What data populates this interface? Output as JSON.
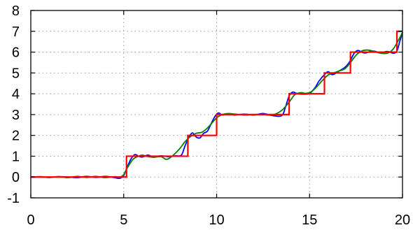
{
  "chart_data": {
    "type": "line",
    "title": "",
    "xlabel": "",
    "ylabel": "",
    "xlim": [
      0,
      20
    ],
    "ylim": [
      -1,
      8
    ],
    "xticks": [
      0,
      5,
      10,
      15,
      20
    ],
    "yticks": [
      -1,
      0,
      1,
      2,
      3,
      4,
      5,
      6,
      7,
      8
    ],
    "grid": true,
    "legend": "none",
    "series": [
      {
        "style": "step",
        "color": "#ff0000",
        "x": [
          0,
          5.15,
          5.15,
          8.45,
          8.45,
          10.0,
          10.0,
          13.9,
          13.9,
          15.8,
          15.8,
          17.2,
          17.2,
          19.7,
          19.7,
          20
        ],
        "y": [
          0,
          0,
          1,
          1,
          2,
          2,
          3,
          3,
          4,
          4,
          5,
          5,
          6,
          6,
          7,
          7
        ]
      },
      {
        "style": "smooth",
        "color": "#0000ff",
        "x": [
          0,
          0.5,
          1,
          1.5,
          2,
          2.5,
          3,
          3.5,
          4,
          4.5,
          4.8,
          5.0,
          5.2,
          5.4,
          5.6,
          5.8,
          6.0,
          6.3,
          6.6,
          7.0,
          7.4,
          7.8,
          8.1,
          8.3,
          8.5,
          8.7,
          8.9,
          9.1,
          9.3,
          9.5,
          9.7,
          9.9,
          10.1,
          10.3,
          10.6,
          11.0,
          11.5,
          12.0,
          12.5,
          13.0,
          13.5,
          13.7,
          13.9,
          14.1,
          14.3,
          14.6,
          15.0,
          15.3,
          15.5,
          15.8,
          16.0,
          16.2,
          16.4,
          16.6,
          16.8,
          17.0,
          17.2,
          17.4,
          17.6,
          17.8,
          18.0,
          18.4,
          18.8,
          19.2,
          19.5,
          19.7,
          19.85,
          20.0
        ],
        "y": [
          0,
          0,
          -0.02,
          0.02,
          0,
          -0.03,
          0.03,
          -0.02,
          0.03,
          -0.03,
          -0.06,
          0.08,
          0.5,
          0.88,
          1.08,
          1.0,
          0.96,
          1.05,
          0.97,
          1.02,
          0.98,
          1.02,
          1.05,
          1.5,
          1.9,
          2.12,
          1.92,
          1.88,
          2.1,
          2.2,
          2.55,
          2.9,
          3.08,
          2.98,
          3.02,
          2.98,
          3.02,
          2.98,
          3.05,
          2.95,
          2.95,
          3.35,
          3.9,
          4.08,
          4.02,
          3.98,
          4.02,
          4.3,
          4.6,
          4.92,
          5.06,
          4.92,
          4.98,
          5.1,
          5.2,
          5.35,
          5.6,
          5.95,
          6.08,
          6.0,
          5.96,
          6.05,
          5.98,
          6.03,
          5.95,
          6.05,
          6.5,
          6.95
        ]
      },
      {
        "style": "smooth",
        "color": "#008000",
        "x": [
          0,
          0.5,
          1,
          1.5,
          2,
          2.5,
          3,
          3.5,
          4,
          4.5,
          4.8,
          5.0,
          5.2,
          5.5,
          5.8,
          6.0,
          6.3,
          6.6,
          7.0,
          7.3,
          7.6,
          8.0,
          8.3,
          8.6,
          8.9,
          9.2,
          9.5,
          9.8,
          10.0,
          10.3,
          10.6,
          11.0,
          11.5,
          12.0,
          12.5,
          13.0,
          13.5,
          13.9,
          14.2,
          14.5,
          14.8,
          15.1,
          15.4,
          15.7,
          16.0,
          16.3,
          16.6,
          16.9,
          17.2,
          17.5,
          17.8,
          18.1,
          18.4,
          18.8,
          19.2,
          19.5,
          19.8,
          20.0
        ],
        "y": [
          0,
          0.02,
          -0.02,
          0.02,
          -0.03,
          0.03,
          -0.02,
          0.03,
          -0.03,
          0.02,
          0.0,
          0.12,
          0.45,
          0.85,
          1.0,
          1.05,
          0.98,
          0.95,
          0.98,
          0.85,
          1.0,
          1.35,
          1.7,
          1.95,
          2.1,
          2.15,
          2.35,
          2.65,
          2.85,
          3.0,
          3.05,
          3.02,
          2.98,
          3.0,
          3.0,
          2.98,
          3.2,
          3.6,
          3.95,
          4.05,
          4.02,
          4.1,
          4.35,
          4.65,
          4.9,
          5.0,
          5.1,
          5.2,
          5.5,
          5.85,
          6.05,
          6.1,
          6.05,
          5.95,
          5.95,
          6.15,
          6.6,
          6.95
        ]
      }
    ]
  }
}
